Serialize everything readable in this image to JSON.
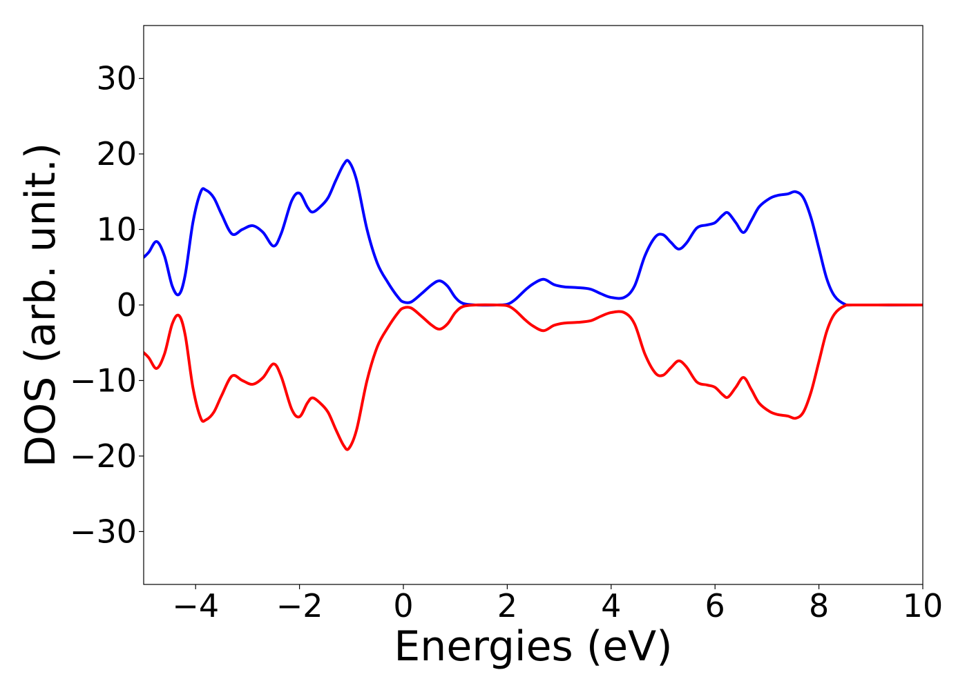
{
  "chart_data": {
    "type": "line",
    "title": "",
    "xlabel": "Energies (eV)",
    "ylabel": "DOS (arb. unit.)",
    "xlim": [
      -5,
      10
    ],
    "ylim": [
      -37,
      37
    ],
    "xticks": [
      -4,
      -2,
      0,
      2,
      4,
      6,
      8,
      10
    ],
    "xtick_labels": [
      "−4",
      "−2",
      "0",
      "2",
      "4",
      "6",
      "8",
      "10"
    ],
    "yticks": [
      30,
      20,
      10,
      0,
      -10,
      -20,
      -30
    ],
    "ytick_labels": [
      "30",
      "20",
      "10",
      "0",
      "−10",
      "−20",
      "−30"
    ],
    "grid": false,
    "legend": "none",
    "series": [
      {
        "color": "#0000ff",
        "points": [
          [
            -5.0,
            6.3
          ],
          [
            -4.9,
            7.0
          ],
          [
            -4.75,
            8.4
          ],
          [
            -4.6,
            6.5
          ],
          [
            -4.45,
            2.5
          ],
          [
            -4.32,
            1.4
          ],
          [
            -4.2,
            4.0
          ],
          [
            -4.05,
            11.0
          ],
          [
            -3.9,
            15.0
          ],
          [
            -3.8,
            15.2
          ],
          [
            -3.65,
            14.2
          ],
          [
            -3.5,
            12.0
          ],
          [
            -3.3,
            9.4
          ],
          [
            -3.1,
            10.0
          ],
          [
            -2.9,
            10.5
          ],
          [
            -2.7,
            9.6
          ],
          [
            -2.5,
            7.8
          ],
          [
            -2.35,
            9.5
          ],
          [
            -2.15,
            13.8
          ],
          [
            -2.0,
            14.8
          ],
          [
            -1.85,
            13.0
          ],
          [
            -1.75,
            12.3
          ],
          [
            -1.6,
            13.0
          ],
          [
            -1.45,
            14.2
          ],
          [
            -1.3,
            16.5
          ],
          [
            -1.15,
            18.6
          ],
          [
            -1.05,
            19.0
          ],
          [
            -0.9,
            16.5
          ],
          [
            -0.7,
            10.0
          ],
          [
            -0.5,
            5.5
          ],
          [
            -0.3,
            3.0
          ],
          [
            -0.1,
            1.0
          ],
          [
            0.0,
            0.4
          ],
          [
            0.15,
            0.4
          ],
          [
            0.35,
            1.5
          ],
          [
            0.55,
            2.7
          ],
          [
            0.7,
            3.2
          ],
          [
            0.85,
            2.5
          ],
          [
            1.0,
            1.0
          ],
          [
            1.15,
            0.2
          ],
          [
            1.4,
            0.0
          ],
          [
            1.8,
            0.0
          ],
          [
            2.0,
            0.1
          ],
          [
            2.15,
            0.7
          ],
          [
            2.35,
            2.0
          ],
          [
            2.5,
            2.8
          ],
          [
            2.7,
            3.4
          ],
          [
            2.9,
            2.7
          ],
          [
            3.1,
            2.4
          ],
          [
            3.35,
            2.3
          ],
          [
            3.6,
            2.1
          ],
          [
            3.8,
            1.5
          ],
          [
            4.0,
            1.0
          ],
          [
            4.25,
            1.0
          ],
          [
            4.45,
            2.5
          ],
          [
            4.65,
            6.5
          ],
          [
            4.85,
            9.0
          ],
          [
            5.0,
            9.3
          ],
          [
            5.15,
            8.3
          ],
          [
            5.3,
            7.4
          ],
          [
            5.45,
            8.2
          ],
          [
            5.65,
            10.2
          ],
          [
            5.85,
            10.6
          ],
          [
            6.0,
            10.9
          ],
          [
            6.15,
            11.9
          ],
          [
            6.25,
            12.2
          ],
          [
            6.4,
            10.9
          ],
          [
            6.55,
            9.6
          ],
          [
            6.7,
            11.2
          ],
          [
            6.85,
            13.0
          ],
          [
            7.05,
            14.1
          ],
          [
            7.2,
            14.5
          ],
          [
            7.4,
            14.7
          ],
          [
            7.55,
            15.0
          ],
          [
            7.7,
            14.2
          ],
          [
            7.85,
            11.5
          ],
          [
            8.0,
            7.5
          ],
          [
            8.15,
            3.5
          ],
          [
            8.3,
            1.2
          ],
          [
            8.5,
            0.1
          ],
          [
            8.7,
            0.0
          ],
          [
            10.0,
            0.0
          ]
        ]
      },
      {
        "color": "#ff0000",
        "points": [
          [
            -5.0,
            -6.3
          ],
          [
            -4.9,
            -7.0
          ],
          [
            -4.75,
            -8.4
          ],
          [
            -4.6,
            -6.5
          ],
          [
            -4.45,
            -2.5
          ],
          [
            -4.32,
            -1.4
          ],
          [
            -4.2,
            -4.0
          ],
          [
            -4.05,
            -11.0
          ],
          [
            -3.9,
            -15.0
          ],
          [
            -3.8,
            -15.2
          ],
          [
            -3.65,
            -14.2
          ],
          [
            -3.5,
            -12.0
          ],
          [
            -3.3,
            -9.4
          ],
          [
            -3.1,
            -10.0
          ],
          [
            -2.9,
            -10.5
          ],
          [
            -2.7,
            -9.6
          ],
          [
            -2.5,
            -7.8
          ],
          [
            -2.35,
            -9.5
          ],
          [
            -2.15,
            -13.8
          ],
          [
            -2.0,
            -14.8
          ],
          [
            -1.85,
            -13.0
          ],
          [
            -1.75,
            -12.3
          ],
          [
            -1.6,
            -13.0
          ],
          [
            -1.45,
            -14.2
          ],
          [
            -1.3,
            -16.5
          ],
          [
            -1.15,
            -18.6
          ],
          [
            -1.05,
            -19.0
          ],
          [
            -0.9,
            -16.5
          ],
          [
            -0.7,
            -10.0
          ],
          [
            -0.5,
            -5.5
          ],
          [
            -0.3,
            -3.0
          ],
          [
            -0.1,
            -1.0
          ],
          [
            0.0,
            -0.4
          ],
          [
            0.15,
            -0.4
          ],
          [
            0.35,
            -1.5
          ],
          [
            0.55,
            -2.7
          ],
          [
            0.7,
            -3.2
          ],
          [
            0.85,
            -2.5
          ],
          [
            1.0,
            -1.0
          ],
          [
            1.15,
            -0.2
          ],
          [
            1.4,
            0.0
          ],
          [
            1.8,
            0.0
          ],
          [
            2.0,
            -0.1
          ],
          [
            2.15,
            -0.7
          ],
          [
            2.35,
            -2.0
          ],
          [
            2.5,
            -2.8
          ],
          [
            2.7,
            -3.4
          ],
          [
            2.9,
            -2.7
          ],
          [
            3.1,
            -2.4
          ],
          [
            3.35,
            -2.3
          ],
          [
            3.6,
            -2.1
          ],
          [
            3.8,
            -1.5
          ],
          [
            4.0,
            -1.0
          ],
          [
            4.25,
            -1.0
          ],
          [
            4.45,
            -2.5
          ],
          [
            4.65,
            -6.5
          ],
          [
            4.85,
            -9.0
          ],
          [
            5.0,
            -9.3
          ],
          [
            5.15,
            -8.3
          ],
          [
            5.3,
            -7.4
          ],
          [
            5.45,
            -8.2
          ],
          [
            5.65,
            -10.2
          ],
          [
            5.85,
            -10.6
          ],
          [
            6.0,
            -10.9
          ],
          [
            6.15,
            -11.9
          ],
          [
            6.25,
            -12.2
          ],
          [
            6.4,
            -10.9
          ],
          [
            6.55,
            -9.6
          ],
          [
            6.7,
            -11.2
          ],
          [
            6.85,
            -13.0
          ],
          [
            7.05,
            -14.1
          ],
          [
            7.2,
            -14.5
          ],
          [
            7.4,
            -14.7
          ],
          [
            7.55,
            -15.0
          ],
          [
            7.7,
            -14.2
          ],
          [
            7.85,
            -11.5
          ],
          [
            8.0,
            -7.5
          ],
          [
            8.15,
            -3.5
          ],
          [
            8.3,
            -1.2
          ],
          [
            8.5,
            -0.1
          ],
          [
            8.7,
            0.0
          ],
          [
            10.0,
            0.0
          ]
        ]
      }
    ]
  }
}
